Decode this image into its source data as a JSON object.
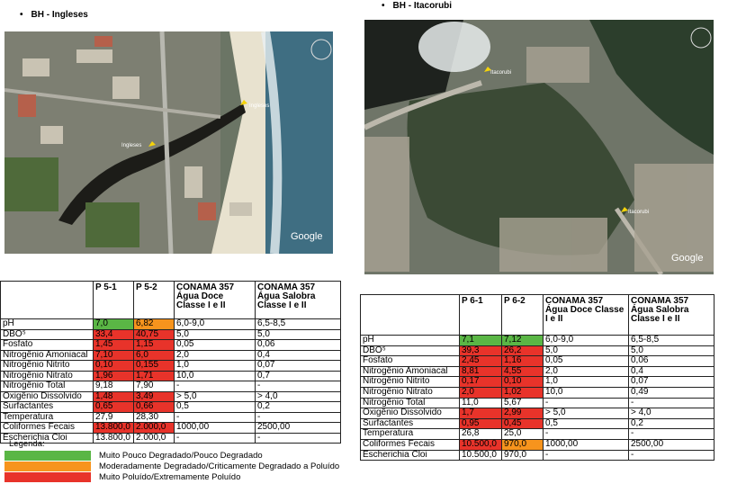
{
  "left": {
    "title": "BH - Ingleses",
    "map": {
      "labels": [
        "Ingleses",
        "Ingleses"
      ],
      "brand": "Google"
    },
    "table": {
      "columns": [
        "P 5-1",
        "P 5-2",
        "CONAMA 357 Água Doce Classe I e II",
        "CONAMA 357 Água Salobra Classe I e II"
      ],
      "rows": [
        {
          "cells": [
            "pH",
            "7,0",
            "6,82",
            "6,0-9,0",
            "6,5-8,5"
          ],
          "colors": [
            "#5ab645",
            "#f7941d"
          ]
        },
        {
          "cells": [
            "DBO⁵",
            "33,4",
            "40,75",
            "5,0",
            "5,0"
          ],
          "colors": [
            "#e8332a",
            "#e8332a"
          ]
        },
        {
          "cells": [
            "Fosfato",
            "1,45",
            "1,15",
            "0,05",
            "0,06"
          ],
          "colors": [
            "#e8332a",
            "#e8332a"
          ]
        },
        {
          "cells": [
            "Nitrogênio Amoniacal",
            "7,10",
            "6,0",
            "2,0",
            "0,4"
          ],
          "colors": [
            "#e8332a",
            "#e8332a"
          ]
        },
        {
          "cells": [
            "Nitrogênio Nitrito",
            "0,10",
            "0,155",
            "1,0",
            "0,07"
          ],
          "colors": [
            "#e8332a",
            "#e8332a"
          ]
        },
        {
          "cells": [
            "Nitrogênio Nitrato",
            "1,96",
            "1,71",
            "10,0",
            "0,7"
          ],
          "colors": [
            "#e8332a",
            "#e8332a"
          ]
        },
        {
          "cells": [
            "Nitrogênio Total",
            "9,18",
            "7,90",
            "-",
            "-"
          ],
          "colors": [
            null,
            null
          ]
        },
        {
          "cells": [
            "Oxigênio Dissolvido",
            "1,48",
            "3,49",
            "> 5,0",
            "> 4,0"
          ],
          "colors": [
            "#e8332a",
            "#e8332a"
          ]
        },
        {
          "cells": [
            "Surfactantes",
            "0,65",
            "0,66",
            "0,5",
            "0,2"
          ],
          "colors": [
            "#e8332a",
            "#e8332a"
          ]
        },
        {
          "cells": [
            "Temperatura",
            "27,9",
            "28,30",
            "-",
            "-"
          ],
          "colors": [
            null,
            null
          ]
        },
        {
          "cells": [
            "Coliformes Fecais",
            "13.800,0",
            "2.000,0",
            "1000,00",
            "2500,00"
          ],
          "colors": [
            "#e8332a",
            "#e8332a"
          ]
        },
        {
          "cells": [
            "Escherichia Cloi",
            "13.800,0",
            "2.000,0",
            "-",
            "-"
          ],
          "colors": [
            null,
            null
          ]
        }
      ]
    },
    "legend": {
      "title": "Legenda:",
      "items": [
        {
          "label": "Muito Pouco Degradado/Pouco Degradado",
          "color": "#5ab645"
        },
        {
          "label": "Moderadamente Degradado/Criticamente Degradado a Poluído",
          "color": "#f7941d"
        },
        {
          "label": "Muito Poluído/Extremamente Poluído",
          "color": "#e8332a"
        }
      ]
    }
  },
  "right": {
    "title": "BH - Itacorubi",
    "map": {
      "labels": [
        "Itacorubi",
        "Itacorubi"
      ],
      "brand": "Google"
    },
    "table": {
      "columns": [
        "P 6-1",
        "P 6-2",
        "CONAMA 357 Água Doce Classe I e II",
        "CONAMA 357 Água Salobra Classe I e II"
      ],
      "rows": [
        {
          "cells": [
            "pH",
            "7,1",
            "7,12",
            "6,0-9,0",
            "6,5-8,5"
          ],
          "colors": [
            "#5ab645",
            "#5ab645"
          ]
        },
        {
          "cells": [
            "DBO⁵",
            "39,3",
            "26,2",
            "5,0",
            "5,0"
          ],
          "colors": [
            "#e8332a",
            "#e8332a"
          ]
        },
        {
          "cells": [
            "Fosfato",
            "2,45",
            "1,16",
            "0,05",
            "0,06"
          ],
          "colors": [
            "#e8332a",
            "#e8332a"
          ]
        },
        {
          "cells": [
            "Nitrogênio Amoniacal",
            "8,81",
            "4,55",
            "2,0",
            "0,4"
          ],
          "colors": [
            "#e8332a",
            "#e8332a"
          ]
        },
        {
          "cells": [
            "Nitrogênio Nitrito",
            "0,17",
            "0,10",
            "1,0",
            "0,07"
          ],
          "colors": [
            "#e8332a",
            "#e8332a"
          ]
        },
        {
          "cells": [
            "Nitrogênio Nitrato",
            "2,0",
            "1,02",
            "10,0",
            "0,49"
          ],
          "colors": [
            "#e8332a",
            "#e8332a"
          ]
        },
        {
          "cells": [
            "Nitrogênio Total",
            "11,0",
            "5,67",
            "-",
            "-"
          ],
          "colors": [
            null,
            null
          ]
        },
        {
          "cells": [
            "Oxigênio Dissolvido",
            "1,7",
            "2,99",
            "> 5,0",
            "> 4,0"
          ],
          "colors": [
            "#e8332a",
            "#e8332a"
          ]
        },
        {
          "cells": [
            "Surfactantes",
            "0,95",
            "0,45",
            "0,5",
            "0,2"
          ],
          "colors": [
            "#e8332a",
            "#e8332a"
          ]
        },
        {
          "cells": [
            "Temperatura",
            "26,8",
            "25,0",
            "-",
            "-"
          ],
          "colors": [
            null,
            null
          ]
        },
        {
          "cells": [
            "Coliformes Fecais",
            "10.500,0",
            "970,0",
            "1000,00",
            "2500,00"
          ],
          "colors": [
            "#e8332a",
            "#f7941d"
          ]
        },
        {
          "cells": [
            "Escherichia Cloi",
            "10.500,0",
            "970,0",
            "-",
            "-"
          ],
          "colors": [
            null,
            null
          ]
        }
      ]
    }
  }
}
